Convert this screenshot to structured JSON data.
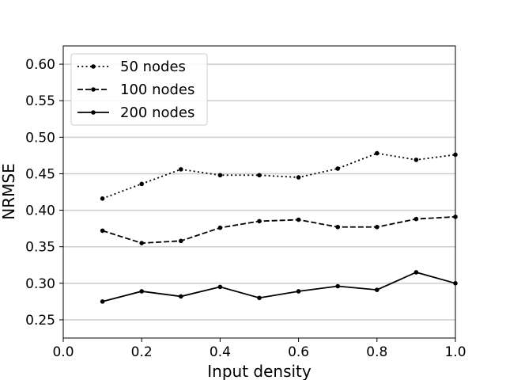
{
  "chart_data": {
    "type": "line",
    "xlabel": "Input density",
    "ylabel": "NRMSE",
    "xlim": [
      0.0,
      1.0
    ],
    "ylim": [
      0.225,
      0.625
    ],
    "xticks": [
      0.0,
      0.2,
      0.4,
      0.6,
      0.8,
      1.0
    ],
    "xtick_labels": [
      "0.0",
      "0.2",
      "0.4",
      "0.6",
      "0.8",
      "1.0"
    ],
    "yticks": [
      0.25,
      0.3,
      0.35,
      0.4,
      0.45,
      0.5,
      0.55,
      0.6
    ],
    "ytick_labels": [
      "0.25",
      "0.30",
      "0.35",
      "0.40",
      "0.45",
      "0.50",
      "0.55",
      "0.60"
    ],
    "grid": "horizontal",
    "legend_position": "top-left",
    "x": [
      0.1,
      0.2,
      0.3,
      0.4,
      0.5,
      0.6,
      0.7,
      0.8,
      0.9,
      1.0
    ],
    "series": [
      {
        "name": "50 nodes",
        "style": "dotted",
        "values": [
          0.416,
          0.436,
          0.456,
          0.448,
          0.448,
          0.445,
          0.457,
          0.478,
          0.469,
          0.476
        ]
      },
      {
        "name": "100 nodes",
        "style": "dashed",
        "values": [
          0.372,
          0.355,
          0.358,
          0.376,
          0.385,
          0.387,
          0.377,
          0.377,
          0.388,
          0.391
        ]
      },
      {
        "name": "200 nodes",
        "style": "solid",
        "values": [
          0.275,
          0.289,
          0.282,
          0.295,
          0.28,
          0.289,
          0.296,
          0.291,
          0.315,
          0.3
        ]
      }
    ],
    "colors": {
      "line": "#000000",
      "grid": "#cccccc"
    }
  }
}
